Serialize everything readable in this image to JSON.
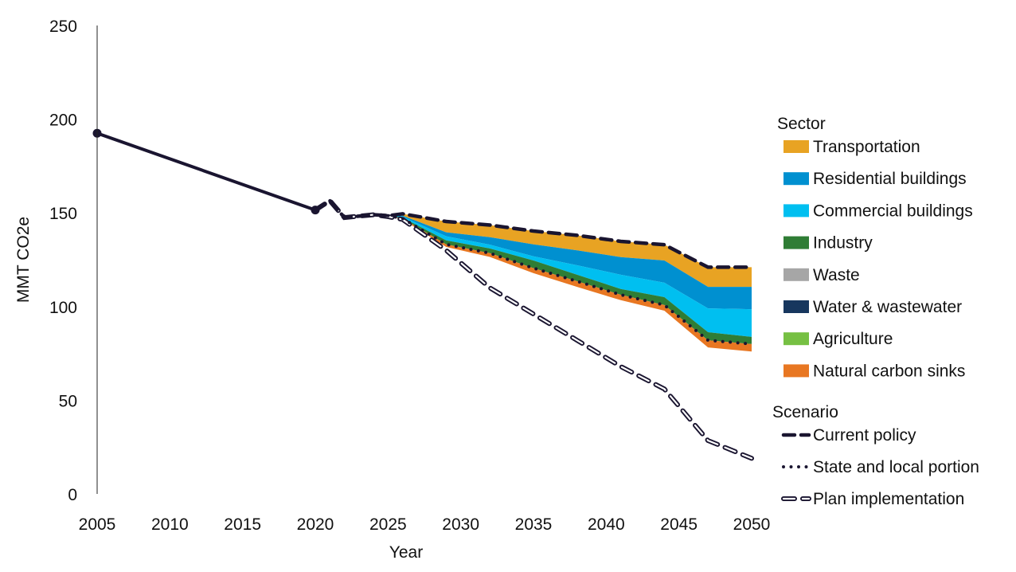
{
  "chart_data": {
    "type": "area",
    "xlabel": "Year",
    "ylabel": "MMT CO2e",
    "xlim": [
      2005,
      2050
    ],
    "ylim": [
      0,
      250
    ],
    "x_ticks": [
      2005,
      2010,
      2015,
      2020,
      2025,
      2030,
      2035,
      2040,
      2045,
      2050
    ],
    "y_ticks": [
      0,
      50,
      100,
      150,
      200,
      250
    ],
    "grid": false,
    "legend_placement": "right",
    "historical": {
      "x": [
        2005,
        2020
      ],
      "y": [
        192.5,
        151.5
      ],
      "color": "#1A1530"
    },
    "sector_legend_title": "Sector",
    "scenario_legend_title": "Scenario",
    "scenarios": [
      {
        "name": "Current policy",
        "style": "dashed",
        "color": "#1A1530",
        "x": [
          2020,
          2021,
          2022,
          2024,
          2025,
          2026,
          2029,
          2032,
          2035,
          2038,
          2041,
          2044,
          2047,
          2050
        ],
        "y": [
          151.5,
          156.5,
          147.5,
          149,
          148.5,
          149.5,
          145.4,
          143.5,
          140.3,
          138,
          134.8,
          133,
          121,
          121
        ]
      },
      {
        "name": "State and local portion",
        "style": "dotted",
        "color": "#1A1530",
        "x": [
          2025,
          2026,
          2029,
          2032,
          2035,
          2038,
          2041,
          2044,
          2047,
          2050
        ],
        "y": [
          148.5,
          147,
          133.2,
          128.5,
          120.5,
          113.5,
          106.3,
          100.8,
          82,
          80
        ]
      },
      {
        "name": "Plan implementation",
        "style": "double-dashed",
        "color": "#1A1530",
        "x": [
          2020,
          2021,
          2022,
          2024,
          2025,
          2026,
          2029,
          2032,
          2035,
          2038,
          2041,
          2044,
          2047,
          2050
        ],
        "y": [
          151.5,
          156.5,
          147.5,
          149,
          148,
          146.5,
          130,
          110,
          96,
          82,
          68,
          56,
          28.5,
          19
        ]
      }
    ],
    "sector_x": [
      2025,
      2026,
      2029,
      2032,
      2035,
      2038,
      2041,
      2044,
      2047,
      2050
    ],
    "sectors": [
      {
        "name": "Transportation",
        "color": "#E8A323",
        "values": [
          0,
          1,
          5.8,
          6.5,
          7.1,
          8,
          8.4,
          8.4,
          10.5,
          10.5
        ]
      },
      {
        "name": "Residential buildings",
        "color": "#0090D0",
        "values": [
          0,
          0.5,
          2.1,
          4,
          6.4,
          8,
          9.4,
          11.9,
          11.5,
          11.9
        ]
      },
      {
        "name": "Commercial buildings",
        "color": "#00BFF0",
        "values": [
          0,
          0.5,
          2.2,
          2,
          2.2,
          5,
          7.6,
          7.7,
          12.7,
          14.8
        ]
      },
      {
        "name": "Industry",
        "color": "#2F7D35",
        "values": [
          0,
          0.5,
          2.1,
          2.5,
          4.1,
          3.5,
          3.1,
          4.2,
          4.3,
          3.8
        ]
      },
      {
        "name": "Waste",
        "color": "#A6A6A6",
        "values": [
          0,
          0,
          0,
          0,
          0,
          0,
          0,
          0,
          0,
          0
        ]
      },
      {
        "name": "Water & wastewater",
        "color": "#17375E",
        "values": [
          0,
          0,
          0,
          0,
          0,
          0,
          0,
          0,
          0,
          0
        ]
      },
      {
        "name": "Agriculture",
        "color": "#76C043",
        "values": [
          0,
          0,
          0,
          0,
          0,
          0,
          0,
          0,
          0,
          0
        ]
      },
      {
        "name": "Natural carbon sinks",
        "color": "#E87722",
        "values": [
          0,
          0.5,
          1.4,
          2,
          2.7,
          3,
          2.9,
          3,
          3.8,
          4
        ]
      }
    ]
  }
}
